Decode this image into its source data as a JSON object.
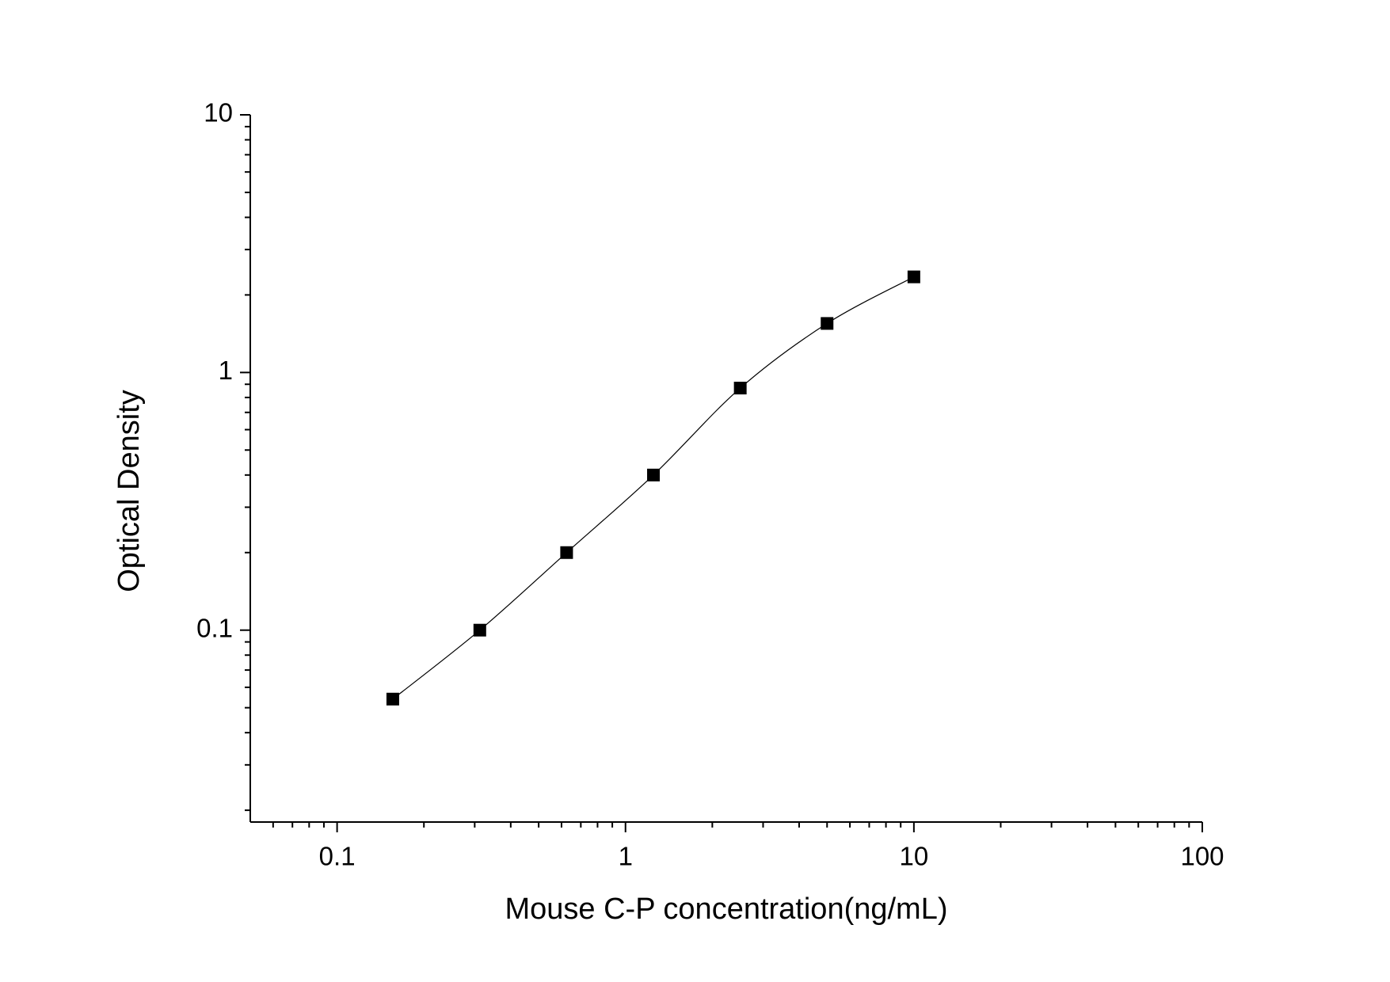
{
  "chart_data": {
    "type": "scatter",
    "x_label": "Mouse C-P concentration(ng/mL)",
    "y_label": "Optical Density",
    "x": [
      0.156,
      0.3125,
      0.625,
      1.25,
      2.5,
      5,
      10
    ],
    "series": [
      {
        "color": "#000000",
        "values": [
          0.054,
          0.1,
          0.2,
          0.4,
          0.87,
          1.55,
          2.35
        ]
      }
    ],
    "xlog": true,
    "ylog": true,
    "xlim": [
      0.05,
      100
    ],
    "ylim": [
      0.018,
      10
    ],
    "xticks": [
      0.1,
      1,
      10,
      100
    ],
    "yticks": [
      0.1,
      1,
      10
    ],
    "xminorticks": [
      0.06,
      0.07,
      0.08,
      0.09,
      0.2,
      0.3,
      0.4,
      0.5,
      0.6,
      0.7,
      0.8,
      0.9,
      2,
      3,
      4,
      5,
      6,
      7,
      8,
      9,
      20,
      30,
      40,
      50,
      60,
      70,
      80,
      90
    ],
    "yminorticks": [
      0.02,
      0.03,
      0.04,
      0.05,
      0.06,
      0.07,
      0.08,
      0.09,
      0.2,
      0.3,
      0.4,
      0.5,
      0.6,
      0.7,
      0.8,
      0.9,
      2,
      3,
      4,
      5,
      6,
      7,
      8,
      9
    ],
    "fit_curve": true,
    "grid": false
  }
}
